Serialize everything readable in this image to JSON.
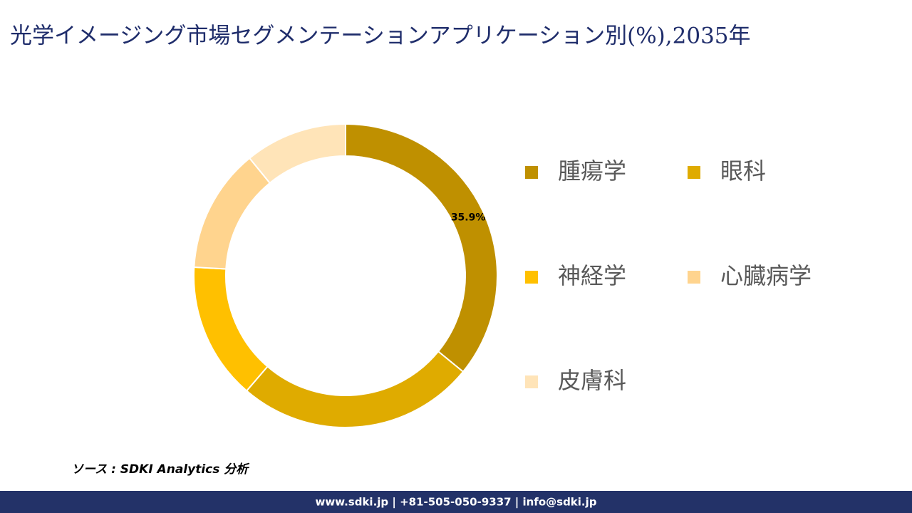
{
  "chart_data": {
    "type": "donut",
    "title": "光学イメージング市場セグメンテーションアプリケーション別(%),2035年",
    "categories": [
      "腫瘍学",
      "眼科",
      "神経学",
      "心臓病学",
      "皮膚科"
    ],
    "values": [
      35.9,
      25.4,
      14.6,
      13.2,
      10.9
    ],
    "value_labels": [
      "35.9%",
      null,
      null,
      null,
      null
    ],
    "colors": [
      "#bf9000",
      "#dfab00",
      "#ffc000",
      "#ffd48e",
      "#ffe4b8"
    ],
    "legend": "right"
  },
  "source": "ソース : SDKI Analytics 分析",
  "footer": "www.sdki.jp | +81-505-050-9337 | info@sdki.jp"
}
